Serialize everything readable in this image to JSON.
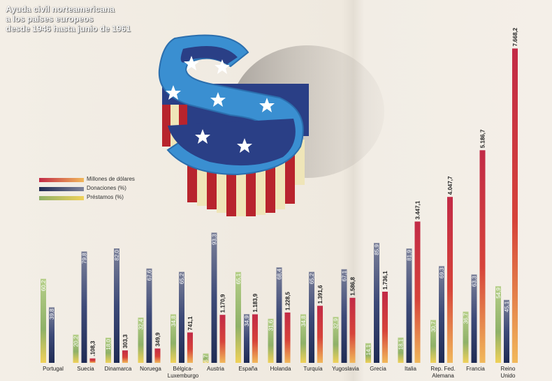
{
  "title_lines": [
    "Ayuda civil norteamericana",
    "a los países europeos",
    "desde 1946 hasta junio de 1961"
  ],
  "legend": {
    "millones": {
      "label": "Millones de dólares",
      "color": "#c9323c"
    },
    "donaciones": {
      "label": "Donaciones (%)",
      "color": "#55607f"
    },
    "prestamos": {
      "label": "Préstamos (%)",
      "color": "#8fb168"
    }
  },
  "colors": {
    "millones": "#c9323c",
    "donaciones": "#55607f",
    "prestamos": "#8fb168",
    "dollar_blue": "#3a8fd1",
    "stripe_red": "#b8242d",
    "stripe_cream": "#efe5b8",
    "star": "#ffffff"
  },
  "chart_data": {
    "type": "bar",
    "title": "Ayuda civil norteamericana a los países europeos desde 1946 hasta junio de 1961",
    "categories": [
      "Portugal",
      "Suecia",
      "Dinamarca",
      "Noruega",
      "Bélgica-Luxemburgo",
      "Austria",
      "España",
      "Holanda",
      "Turquía",
      "Yugoslavia",
      "Grecia",
      "Italia",
      "Rep. Fed. Alemana",
      "Francia",
      "Reino Unido"
    ],
    "series": [
      {
        "name": "Préstamos (%)",
        "values": [
          60.2,
          20.2,
          18.0,
          32.4,
          34.8,
          6.7,
          65.1,
          31.6,
          34.8,
          32.9,
          14.1,
          18.1,
          30.7,
          36.7,
          54.9
        ]
      },
      {
        "name": "Donaciones (%)",
        "values": [
          39.8,
          79.8,
          82.0,
          67.6,
          65.2,
          93.3,
          34.9,
          68.4,
          65.2,
          67.1,
          85.9,
          81.9,
          69.3,
          63.3,
          45.1
        ]
      },
      {
        "name": "Millones de dólares",
        "values": [
          null,
          108.3,
          303.3,
          349.9,
          741.1,
          1170.9,
          1183.9,
          1228.5,
          1391.6,
          1586.8,
          1736.1,
          3447.1,
          4047.7,
          5186.7,
          7668.2
        ]
      }
    ],
    "value_labels": {
      "prestamos": [
        "60,2",
        "20,2",
        "18,0",
        "32,4",
        "34,8",
        "6,7",
        "65,1",
        "31,6",
        "34,8",
        "32,9",
        "14,1",
        "18,1",
        "30,7",
        "36,7",
        "54,9"
      ],
      "donaciones": [
        "39,8",
        "79,8",
        "82,0",
        "67,6",
        "65,2",
        "93,3",
        "34,9",
        "68,4",
        "65,2",
        "67,1",
        "85,9",
        "81,9",
        "69,3",
        "63,3",
        "45,1"
      ],
      "millones": [
        "",
        ".108,3",
        "303,3",
        "349,9",
        "741,1",
        "1.170,9",
        "1.183,9",
        "1.228,5",
        "1.391,6",
        "1.586,8",
        "1.736,1",
        "3.447,1",
        "4.047,7",
        "5.186,7",
        "7.668,2"
      ]
    },
    "ylim_percent": [
      0,
      100
    ],
    "ylim_millones": [
      0,
      8000
    ]
  }
}
